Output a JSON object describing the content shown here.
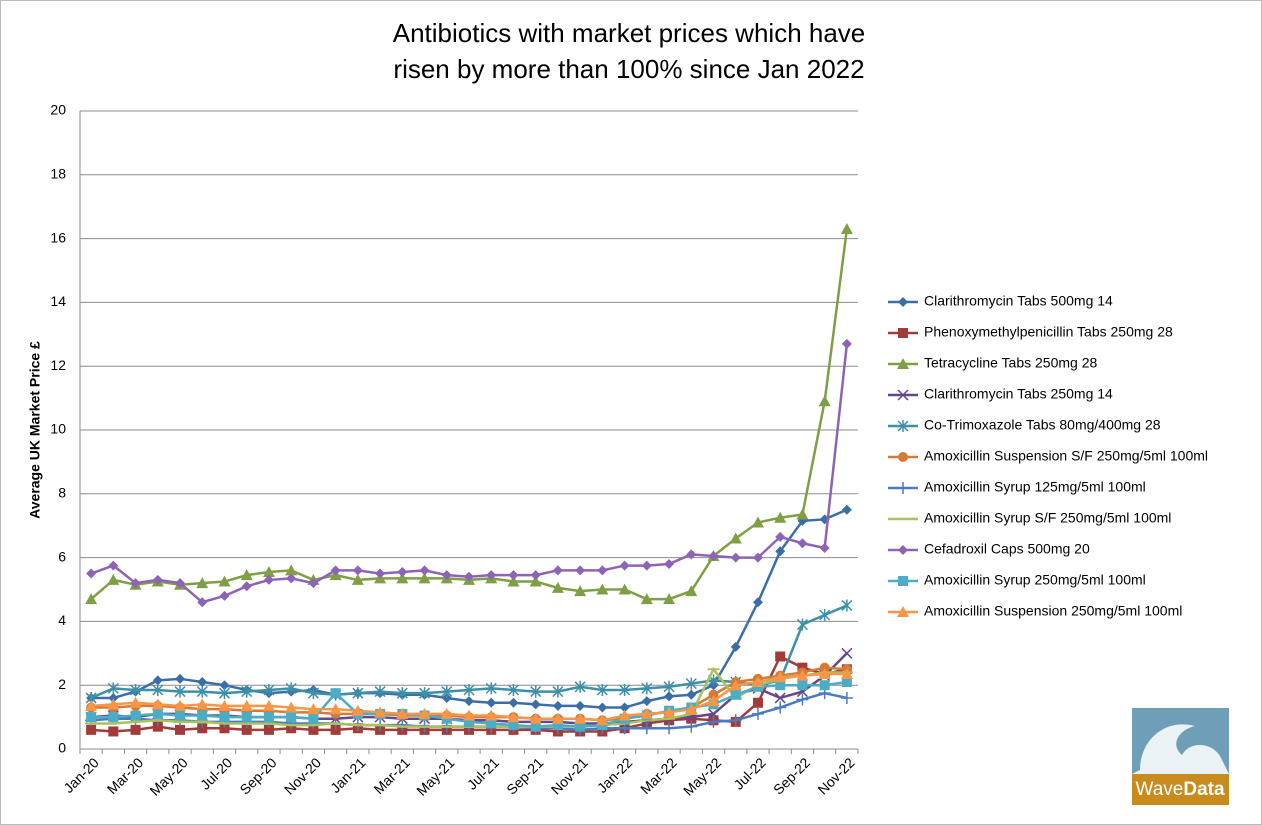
{
  "chart_data": {
    "type": "line",
    "title": [
      "Antibiotics with market prices which have",
      "risen by more than 100% since Jan 2022"
    ],
    "y_label": "Average UK Market Price £",
    "categories": [
      "Jan-20",
      null,
      "Mar-20",
      null,
      "May-20",
      null,
      "Jul-20",
      null,
      "Sep-20",
      null,
      "Nov-20",
      null,
      "Jan-21",
      null,
      "Mar-21",
      null,
      "May-21",
      null,
      "Jul-21",
      null,
      "Sep-21",
      null,
      "Nov-21",
      null,
      "Jan-22",
      null,
      "Mar-22",
      null,
      "May-22",
      null,
      "Jul-22",
      null,
      "Sep-22",
      null,
      "Nov-22"
    ],
    "ylim": [
      0,
      20
    ],
    "yticks": [
      0,
      2,
      4,
      6,
      8,
      10,
      12,
      14,
      16,
      18,
      20
    ],
    "grid": true,
    "legend": "right",
    "series": [
      {
        "name": "Clarithromycin Tabs 500mg 14",
        "color": "#3b6ea8",
        "marker": "diamond",
        "values": [
          1.6,
          1.6,
          1.8,
          2.15,
          2.2,
          2.1,
          2.0,
          1.85,
          1.75,
          1.8,
          1.85,
          1.7,
          1.75,
          1.75,
          1.7,
          1.7,
          1.6,
          1.5,
          1.45,
          1.45,
          1.4,
          1.35,
          1.35,
          1.3,
          1.3,
          1.5,
          1.65,
          1.7,
          2.0,
          3.2,
          4.6,
          6.2,
          7.15,
          7.2,
          7.5
        ]
      },
      {
        "name": "Phenoxymethylpenicillin Tabs 250mg 28",
        "color": "#a33b38",
        "marker": "square",
        "values": [
          0.6,
          0.55,
          0.6,
          0.7,
          0.6,
          0.65,
          0.65,
          0.6,
          0.6,
          0.65,
          0.6,
          0.6,
          0.65,
          0.6,
          0.6,
          0.6,
          0.6,
          0.6,
          0.6,
          0.6,
          0.6,
          0.55,
          0.55,
          0.55,
          0.65,
          0.8,
          0.9,
          0.95,
          0.9,
          0.85,
          1.45,
          2.9,
          2.55,
          2.35,
          2.5
        ]
      },
      {
        "name": "Tetracycline Tabs 250mg 28",
        "color": "#7f9f45",
        "marker": "triangle",
        "values": [
          4.7,
          5.3,
          5.15,
          5.25,
          5.15,
          5.2,
          5.25,
          5.45,
          5.55,
          5.6,
          5.3,
          5.45,
          5.3,
          5.35,
          5.35,
          5.35,
          5.35,
          5.3,
          5.35,
          5.25,
          5.25,
          5.05,
          4.95,
          5.0,
          5.0,
          4.7,
          4.7,
          4.95,
          6.05,
          6.6,
          7.1,
          7.25,
          7.35,
          10.9,
          16.3
        ]
      },
      {
        "name": "Clarithromycin Tabs 250mg 14",
        "color": "#66478c",
        "marker": "x",
        "values": [
          1.0,
          1.05,
          1.0,
          1.1,
          1.1,
          1.05,
          1.05,
          1.0,
          1.0,
          1.0,
          0.95,
          0.95,
          1.0,
          1.0,
          0.95,
          0.95,
          0.95,
          0.9,
          0.9,
          0.85,
          0.85,
          0.85,
          0.8,
          0.8,
          0.85,
          0.9,
          0.95,
          1.0,
          1.1,
          1.7,
          1.9,
          1.6,
          1.8,
          2.3,
          3.0
        ]
      },
      {
        "name": "Co-Trimoxazole Tabs 80mg/400mg 28",
        "color": "#3d90a6",
        "marker": "star",
        "values": [
          1.6,
          1.9,
          1.85,
          1.85,
          1.8,
          1.8,
          1.75,
          1.8,
          1.85,
          1.9,
          1.75,
          1.7,
          1.75,
          1.8,
          1.75,
          1.75,
          1.8,
          1.85,
          1.9,
          1.85,
          1.8,
          1.8,
          1.95,
          1.85,
          1.85,
          1.9,
          1.95,
          2.05,
          2.15,
          2.1,
          2.0,
          2.15,
          3.9,
          4.2,
          4.5
        ]
      },
      {
        "name": "Amoxicillin Suspension S/F 250mg/5ml 100ml",
        "color": "#d67a35",
        "marker": "circle",
        "values": [
          1.3,
          1.3,
          1.35,
          1.35,
          1.3,
          1.25,
          1.25,
          1.2,
          1.2,
          1.15,
          1.15,
          1.1,
          1.1,
          1.1,
          1.05,
          1.05,
          1.05,
          1.0,
          1.0,
          1.0,
          0.95,
          0.95,
          0.95,
          0.9,
          0.95,
          1.1,
          1.15,
          1.3,
          1.7,
          2.1,
          2.2,
          2.3,
          2.4,
          2.55,
          2.5
        ]
      },
      {
        "name": "Amoxicillin Syrup 125mg/5ml 100ml",
        "color": "#4a7bc0",
        "marker": "plus",
        "values": [
          0.9,
          0.95,
          0.95,
          0.9,
          0.9,
          0.85,
          0.85,
          0.85,
          0.85,
          0.8,
          0.8,
          0.8,
          0.75,
          0.75,
          0.75,
          0.7,
          0.7,
          0.7,
          0.7,
          0.7,
          0.65,
          0.65,
          0.6,
          0.65,
          0.65,
          0.65,
          0.65,
          0.7,
          0.85,
          0.9,
          1.1,
          1.3,
          1.55,
          1.75,
          1.6
        ]
      },
      {
        "name": "Amoxicillin Syrup S/F 250mg/5ml 100ml",
        "color": "#a8c35e",
        "marker": "dash",
        "values": [
          0.8,
          0.8,
          0.85,
          0.9,
          0.85,
          0.85,
          0.8,
          0.8,
          0.8,
          0.75,
          0.75,
          0.8,
          0.75,
          0.75,
          0.7,
          0.7,
          0.7,
          0.7,
          0.7,
          0.7,
          0.7,
          0.7,
          0.7,
          0.75,
          0.8,
          0.9,
          0.95,
          1.1,
          2.5,
          1.6,
          2.0,
          2.2,
          2.3,
          2.4,
          2.4
        ]
      },
      {
        "name": "Cefadroxil Caps 500mg 20",
        "color": "#8d63b8",
        "marker": "diamond",
        "values": [
          5.5,
          5.75,
          5.2,
          5.3,
          5.2,
          4.6,
          4.8,
          5.1,
          5.3,
          5.35,
          5.2,
          5.6,
          5.6,
          5.5,
          5.55,
          5.6,
          5.45,
          5.4,
          5.45,
          5.45,
          5.45,
          5.6,
          5.6,
          5.6,
          5.75,
          5.75,
          5.8,
          6.1,
          6.05,
          6.0,
          6.0,
          6.65,
          6.45,
          6.3,
          12.7
        ]
      },
      {
        "name": "Amoxicillin Syrup 250mg/5ml 100ml",
        "color": "#4bacc6",
        "marker": "square",
        "values": [
          1.0,
          1.0,
          1.05,
          1.1,
          1.05,
          1.05,
          1.0,
          1.0,
          1.0,
          1.0,
          0.95,
          1.75,
          1.1,
          1.1,
          1.1,
          1.05,
          0.95,
          0.85,
          0.8,
          0.75,
          0.7,
          0.75,
          0.7,
          0.75,
          0.95,
          1.05,
          1.2,
          1.3,
          1.4,
          1.7,
          1.95,
          2.0,
          2.0,
          2.0,
          2.1
        ]
      },
      {
        "name": "Amoxicillin Suspension 250mg/5ml 100ml",
        "color": "#f79646",
        "marker": "triangle",
        "values": [
          1.35,
          1.4,
          1.45,
          1.4,
          1.35,
          1.4,
          1.35,
          1.35,
          1.35,
          1.3,
          1.25,
          1.25,
          1.2,
          1.15,
          1.1,
          1.1,
          1.1,
          1.05,
          1.05,
          1.0,
          0.95,
          0.95,
          0.95,
          0.9,
          1.05,
          1.1,
          1.15,
          1.25,
          1.5,
          2.0,
          2.1,
          2.25,
          2.3,
          2.35,
          2.35
        ]
      }
    ]
  },
  "logo": [
    "Wave",
    "Data"
  ]
}
